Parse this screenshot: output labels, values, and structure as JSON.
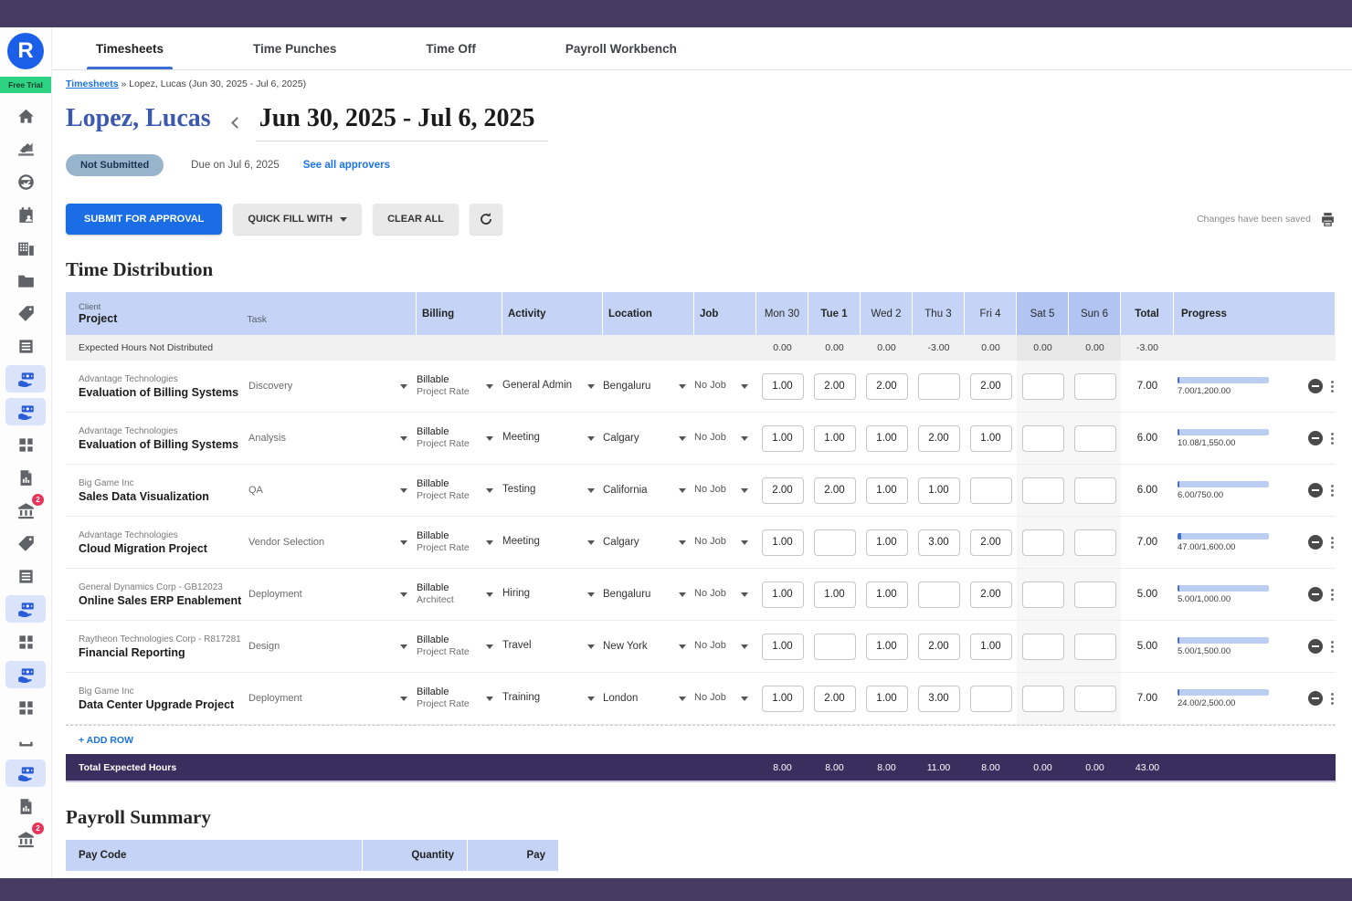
{
  "app": {
    "logo_letter": "R",
    "trial_badge": "Free Trial"
  },
  "tabs": [
    {
      "label": "Timesheets",
      "active": true
    },
    {
      "label": "Time Punches",
      "active": false
    },
    {
      "label": "Time Off",
      "active": false
    },
    {
      "label": "Payroll Workbench",
      "active": false
    }
  ],
  "breadcrumb": {
    "link": "Timesheets",
    "separator": "»",
    "current": "Lopez, Lucas (Jun 30, 2025 - Jul 6, 2025)"
  },
  "header": {
    "name": "Lopez, Lucas",
    "period": "Jun 30, 2025 - Jul 6, 2025",
    "status": "Not Submitted",
    "due": "Due on Jul 6, 2025",
    "approvers_link": "See all approvers"
  },
  "toolbar": {
    "submit": "SUBMIT FOR APPROVAL",
    "quick_fill": "QUICK FILL WITH",
    "clear_all": "CLEAR ALL",
    "saved_note": "Changes have been saved"
  },
  "time_distribution": {
    "title": "Time Distribution",
    "columns": {
      "client": "Client",
      "project": "Project",
      "task": "Task",
      "billing": "Billing",
      "activity": "Activity",
      "location": "Location",
      "job": "Job",
      "total": "Total",
      "progress": "Progress"
    },
    "days": [
      {
        "label": "Mon 30",
        "weekend": false,
        "today": false
      },
      {
        "label": "Tue 1",
        "weekend": false,
        "today": true
      },
      {
        "label": "Wed 2",
        "weekend": false,
        "today": false
      },
      {
        "label": "Thu 3",
        "weekend": false,
        "today": false
      },
      {
        "label": "Fri 4",
        "weekend": false,
        "today": false
      },
      {
        "label": "Sat 5",
        "weekend": true,
        "today": false
      },
      {
        "label": "Sun 6",
        "weekend": true,
        "today": false
      }
    ],
    "expected_row": {
      "label": "Expected Hours Not Distributed",
      "values": [
        "0.00",
        "0.00",
        "0.00",
        "-3.00",
        "0.00",
        "0.00",
        "0.00"
      ],
      "total": "-3.00"
    },
    "rows": [
      {
        "client": "Advantage Technologies",
        "project": "Evaluation of Billing Systems",
        "task": "Discovery",
        "billing_type": "Billable",
        "billing_rate": "Project Rate",
        "activity": "General Admin",
        "location": "Bengaluru",
        "job": "No Job",
        "hours": [
          "1.00",
          "2.00",
          "2.00",
          "",
          "2.00",
          "",
          ""
        ],
        "total": "7.00",
        "progress": "7.00/1,200.00",
        "progress_pct": 2
      },
      {
        "client": "Advantage Technologies",
        "project": "Evaluation of Billing Systems",
        "task": "Analysis",
        "billing_type": "Billable",
        "billing_rate": "Project Rate",
        "activity": "Meeting",
        "location": "Calgary",
        "job": "No Job",
        "hours": [
          "1.00",
          "1.00",
          "1.00",
          "2.00",
          "1.00",
          "",
          ""
        ],
        "total": "6.00",
        "progress": "10.08/1,550.00",
        "progress_pct": 2
      },
      {
        "client": "Big Game Inc",
        "project": "Sales Data Visualization",
        "task": "QA",
        "billing_type": "Billable",
        "billing_rate": "Project Rate",
        "activity": "Testing",
        "location": "California",
        "job": "No Job",
        "hours": [
          "2.00",
          "2.00",
          "1.00",
          "1.00",
          "",
          "",
          ""
        ],
        "total": "6.00",
        "progress": "6.00/750.00",
        "progress_pct": 2
      },
      {
        "client": "Advantage Technologies",
        "project": "Cloud Migration Project",
        "task": "Vendor Selection",
        "billing_type": "Billable",
        "billing_rate": "Project Rate",
        "activity": "Meeting",
        "location": "Calgary",
        "job": "No Job",
        "hours": [
          "1.00",
          "",
          "1.00",
          "3.00",
          "2.00",
          "",
          ""
        ],
        "total": "7.00",
        "progress": "47.00/1,600.00",
        "progress_pct": 4
      },
      {
        "client": "General Dynamics Corp - GB12023",
        "project": "Online Sales ERP Enablement",
        "task": "Deployment",
        "billing_type": "Billable",
        "billing_rate": "Architect",
        "activity": "Hiring",
        "location": "Bengaluru",
        "job": "No Job",
        "hours": [
          "1.00",
          "1.00",
          "1.00",
          "",
          "2.00",
          "",
          ""
        ],
        "total": "5.00",
        "progress": "5.00/1,000.00",
        "progress_pct": 2
      },
      {
        "client": "Raytheon Technologies Corp - R817281",
        "project": "Financial Reporting",
        "task": "Design",
        "billing_type": "Billable",
        "billing_rate": "Project Rate",
        "activity": "Travel",
        "location": "New York",
        "job": "No Job",
        "hours": [
          "1.00",
          "",
          "1.00",
          "2.00",
          "1.00",
          "",
          ""
        ],
        "total": "5.00",
        "progress": "5.00/1,500.00",
        "progress_pct": 2
      },
      {
        "client": "Big Game Inc",
        "project": "Data Center Upgrade Project",
        "task": "Deployment",
        "billing_type": "Billable",
        "billing_rate": "Project Rate",
        "activity": "Training",
        "location": "London",
        "job": "No Job",
        "hours": [
          "1.00",
          "2.00",
          "1.00",
          "3.00",
          "",
          "",
          ""
        ],
        "total": "7.00",
        "progress": "24.00/2,500.00",
        "progress_pct": 2
      }
    ],
    "add_row_label": "+ ADD ROW",
    "totals_row": {
      "label": "Total Expected Hours",
      "values": [
        "8.00",
        "8.00",
        "8.00",
        "11.00",
        "8.00",
        "0.00",
        "0.00"
      ],
      "total": "43.00"
    }
  },
  "payroll_summary": {
    "title": "Payroll Summary",
    "columns": [
      "Pay Code",
      "Quantity",
      "Pay"
    ]
  },
  "sidebar": {
    "items": [
      {
        "icon": "home-icon",
        "active": false
      },
      {
        "icon": "edit-report-icon",
        "active": false
      },
      {
        "icon": "globe-check-icon",
        "active": false
      },
      {
        "icon": "calendar-user-icon",
        "active": false
      },
      {
        "icon": "building-icon",
        "active": false
      },
      {
        "icon": "folder-icon",
        "active": false
      },
      {
        "icon": "tag-icon",
        "active": false
      },
      {
        "icon": "list-icon",
        "active": false
      },
      {
        "icon": "payroll-hand-icon",
        "active": true
      },
      {
        "icon": "payroll-hand-icon",
        "active": true
      },
      {
        "icon": "grid-icon",
        "active": false
      },
      {
        "icon": "document-chart-icon",
        "active": false
      },
      {
        "icon": "bank-icon",
        "active": false,
        "badge": "2"
      },
      {
        "icon": "tag-icon",
        "active": false
      },
      {
        "icon": "list-icon",
        "active": false
      },
      {
        "icon": "payroll-hand-icon",
        "active": true
      },
      {
        "icon": "grid-icon",
        "active": false
      },
      {
        "icon": "payroll-hand-icon",
        "active": true
      },
      {
        "icon": "grid-icon",
        "active": false
      },
      {
        "icon": "tray-icon",
        "active": false
      },
      {
        "icon": "payroll-hand-icon",
        "active": true
      },
      {
        "icon": "document-chart-icon",
        "active": false
      },
      {
        "icon": "bank-icon",
        "active": false,
        "badge": "2"
      }
    ]
  }
}
